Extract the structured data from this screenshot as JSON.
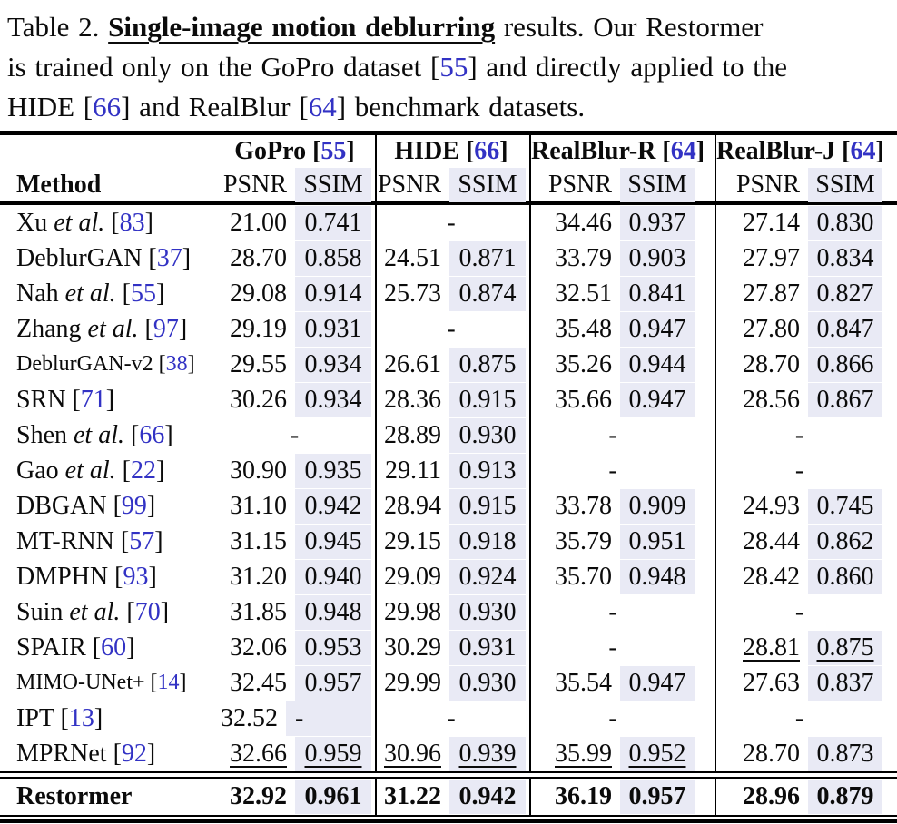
{
  "caption": {
    "lines": [
      [
        {
          "t": "Table 2. ",
          "s": "plain"
        },
        {
          "t": "Single-image motion deblurring",
          "s": "em"
        },
        {
          "t": " results. Our Restormer",
          "s": "plain"
        }
      ],
      [
        {
          "t": "is trained only on the GoPro dataset [",
          "s": "plain"
        },
        {
          "t": "55",
          "s": "ref"
        },
        {
          "t": "] and directly applied to the",
          "s": "plain"
        }
      ],
      [
        {
          "t": "HIDE [",
          "s": "plain"
        },
        {
          "t": "66",
          "s": "ref"
        },
        {
          "t": "] and RealBlur [",
          "s": "plain"
        },
        {
          "t": "64",
          "s": "ref"
        },
        {
          "t": "] benchmark datasets.",
          "s": "plain"
        }
      ]
    ]
  },
  "table": {
    "method_header": "Method",
    "groups": [
      {
        "label": "GoPro",
        "ref": "55"
      },
      {
        "label": "HIDE",
        "ref": "66"
      },
      {
        "label": "RealBlur-R",
        "ref": "64"
      },
      {
        "label": "RealBlur-J",
        "ref": "64"
      }
    ],
    "metrics": [
      "PSNR",
      "SSIM"
    ],
    "rows": [
      {
        "name": "Xu",
        "etal": true,
        "ref": "83",
        "cells": [
          {
            "p": "21.00",
            "s": "0.741"
          },
          null,
          {
            "p": "34.46",
            "s": "0.937"
          },
          {
            "p": "27.14",
            "s": "0.830"
          }
        ]
      },
      {
        "name": "DeblurGAN",
        "ref": "37",
        "cells": [
          {
            "p": "28.70",
            "s": "0.858"
          },
          {
            "p": "24.51",
            "s": "0.871"
          },
          {
            "p": "33.79",
            "s": "0.903"
          },
          {
            "p": "27.97",
            "s": "0.834"
          }
        ]
      },
      {
        "name": "Nah",
        "etal": true,
        "ref": "55",
        "cells": [
          {
            "p": "29.08",
            "s": "0.914"
          },
          {
            "p": "25.73",
            "s": "0.874"
          },
          {
            "p": "32.51",
            "s": "0.841"
          },
          {
            "p": "27.87",
            "s": "0.827"
          }
        ]
      },
      {
        "name": "Zhang",
        "etal": true,
        "ref": "97",
        "cells": [
          {
            "p": "29.19",
            "s": "0.931"
          },
          null,
          {
            "p": "35.48",
            "s": "0.947"
          },
          {
            "p": "27.80",
            "s": "0.847"
          }
        ]
      },
      {
        "name": "DeblurGAN-v2",
        "ref": "38",
        "small": true,
        "cells": [
          {
            "p": "29.55",
            "s": "0.934"
          },
          {
            "p": "26.61",
            "s": "0.875"
          },
          {
            "p": "35.26",
            "s": "0.944"
          },
          {
            "p": "28.70",
            "s": "0.866"
          }
        ]
      },
      {
        "name": "SRN",
        "ref": "71",
        "cells": [
          {
            "p": "30.26",
            "s": "0.934"
          },
          {
            "p": "28.36",
            "s": "0.915"
          },
          {
            "p": "35.66",
            "s": "0.947"
          },
          {
            "p": "28.56",
            "s": "0.867"
          }
        ]
      },
      {
        "name": "Shen",
        "etal": true,
        "ref": "66",
        "cells": [
          null,
          {
            "p": "28.89",
            "s": "0.930"
          },
          null,
          null
        ]
      },
      {
        "name": "Gao",
        "etal": true,
        "ref": "22",
        "cells": [
          {
            "p": "30.90",
            "s": "0.935"
          },
          {
            "p": "29.11",
            "s": "0.913"
          },
          null,
          null
        ]
      },
      {
        "name": "DBGAN",
        "ref": "99",
        "cells": [
          {
            "p": "31.10",
            "s": "0.942"
          },
          {
            "p": "28.94",
            "s": "0.915"
          },
          {
            "p": "33.78",
            "s": "0.909"
          },
          {
            "p": "24.93",
            "s": "0.745"
          }
        ]
      },
      {
        "name": "MT-RNN",
        "ref": "57",
        "cells": [
          {
            "p": "31.15",
            "s": "0.945"
          },
          {
            "p": "29.15",
            "s": "0.918"
          },
          {
            "p": "35.79",
            "s": "0.951"
          },
          {
            "p": "28.44",
            "s": "0.862"
          }
        ]
      },
      {
        "name": "DMPHN",
        "ref": "93",
        "cells": [
          {
            "p": "31.20",
            "s": "0.940"
          },
          {
            "p": "29.09",
            "s": "0.924"
          },
          {
            "p": "35.70",
            "s": "0.948"
          },
          {
            "p": "28.42",
            "s": "0.860"
          }
        ]
      },
      {
        "name": "Suin",
        "etal": true,
        "ref": "70",
        "cells": [
          {
            "p": "31.85",
            "s": "0.948"
          },
          {
            "p": "29.98",
            "s": "0.930"
          },
          null,
          null
        ]
      },
      {
        "name": "SPAIR",
        "ref": "60",
        "cells": [
          {
            "p": "32.06",
            "s": "0.953"
          },
          {
            "p": "30.29",
            "s": "0.931"
          },
          null,
          {
            "p": "28.81",
            "s": "0.875",
            "u": true
          }
        ]
      },
      {
        "name": "MIMO-UNet+",
        "ref": "14",
        "small": true,
        "cells": [
          {
            "p": "32.45",
            "s": "0.957"
          },
          {
            "p": "29.99",
            "s": "0.930"
          },
          {
            "p": "35.54",
            "s": "0.947"
          },
          {
            "p": "27.63",
            "s": "0.837"
          }
        ]
      },
      {
        "name": "IPT",
        "ref": "13",
        "cells": [
          {
            "p": "32.52",
            "s": "-"
          },
          null,
          null,
          null
        ]
      },
      {
        "name": "MPRNet",
        "ref": "92",
        "cells": [
          {
            "p": "32.66",
            "s": "0.959",
            "u": true
          },
          {
            "p": "30.96",
            "s": "0.939",
            "u": true
          },
          {
            "p": "35.99",
            "s": "0.952",
            "u": true
          },
          {
            "p": "28.70",
            "s": "0.873"
          }
        ]
      }
    ],
    "final_row": {
      "name": "Restormer",
      "cells": [
        {
          "p": "32.92",
          "s": "0.961"
        },
        {
          "p": "31.22",
          "s": "0.942"
        },
        {
          "p": "36.19",
          "s": "0.957"
        },
        {
          "p": "28.96",
          "s": "0.879"
        }
      ]
    }
  },
  "colors": {
    "highlight": "#e9eaf5",
    "ref_blue": "#3232c4"
  }
}
